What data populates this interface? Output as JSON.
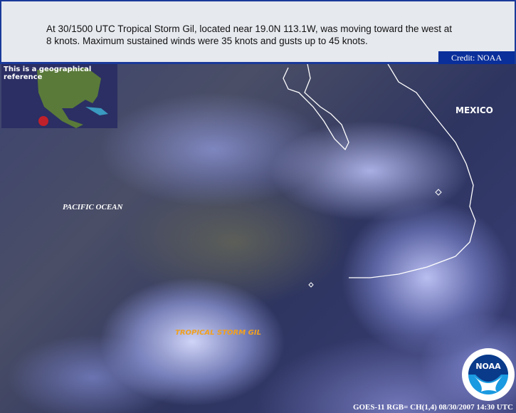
{
  "header": {
    "caption": "At 30/1500 UTC Tropical Storm Gil, located near 19.0N 113.1W, was moving toward the west at 8 knots. Maximum sustained winds were 35 knots and gusts up to 45 knots.",
    "credit": "Credit: NOAA"
  },
  "inset": {
    "title": "This is a geographical reference",
    "marker_color": "#c0202a"
  },
  "labels": {
    "ocean": "PACIFIC OCEAN",
    "country": "MEXICO",
    "storm": "TROPICAL STORM GIL"
  },
  "footer": {
    "source": "GOES-11 RGB= CH(1,4) 08/30/2007 14:30 UTC"
  },
  "logo": {
    "text": "NOAA"
  },
  "colors": {
    "header_border": "#1a3a9a",
    "credit_bg": "#0a2f9a",
    "storm_label": "#f0a020",
    "coastline": "#ffffff"
  }
}
